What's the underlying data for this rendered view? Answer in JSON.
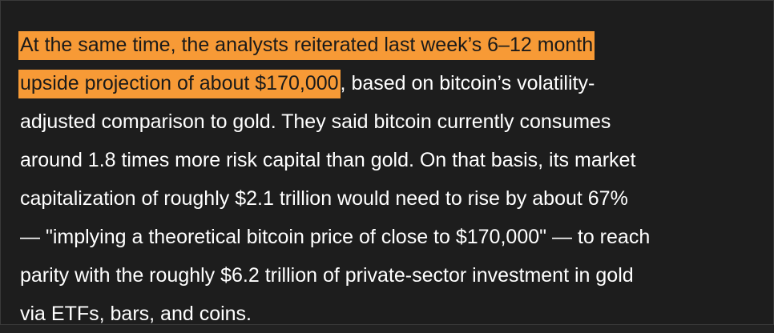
{
  "article": {
    "highlight_line1": "At the same time, the analysts reiterated last week’s 6–12 month",
    "highlight_line2": "upside projection of about $170,000",
    "line2_rest": ", based on bitcoin’s volatility-",
    "line3": "adjusted comparison to gold. They said bitcoin currently consumes",
    "line4": "around 1.8 times more risk capital than gold. On that basis, its market",
    "line5": "capitalization of roughly $2.1 trillion would need to rise by about 67%",
    "line6": "— \"implying a theoretical bitcoin price of close to $170,000\" — to reach",
    "line7": "parity with the roughly $6.2 trillion of private-sector investment in gold",
    "line8": "via ETFs, bars, and coins."
  },
  "colors": {
    "background": "#1d1d1d",
    "text": "#ffffff",
    "highlight": "#f79a36"
  }
}
